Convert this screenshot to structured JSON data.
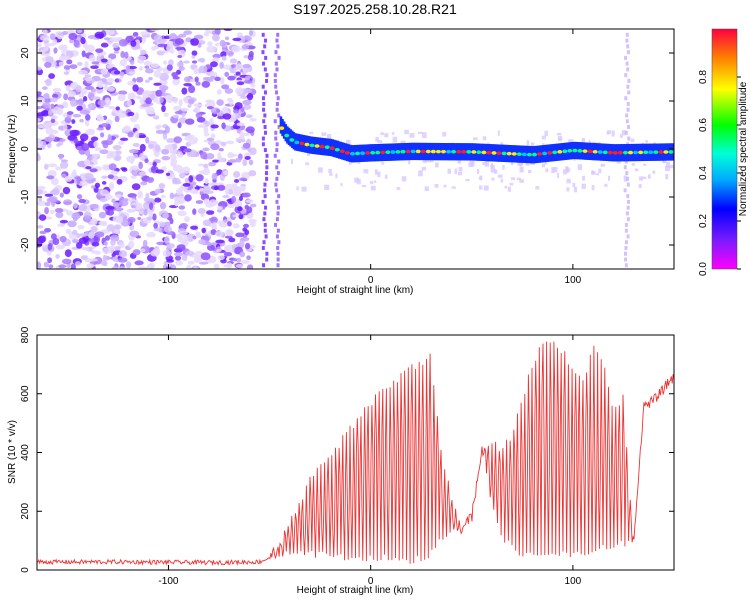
{
  "title": "S197.2025.258.10.28.R21",
  "chart_data": [
    {
      "type": "heatmap",
      "xlabel": "Height of straight line (km)",
      "ylabel": "Frequency (Hz)",
      "xlim": [
        -165,
        150
      ],
      "ylim": [
        -25,
        25
      ],
      "xticks": [
        -100,
        0,
        100
      ],
      "yticks": [
        -20,
        -10,
        0,
        10,
        20
      ],
      "xtick_labels": [
        "-100",
        "0",
        "100"
      ],
      "ytick_labels": [
        "-20",
        "-10",
        "0",
        "10",
        "20"
      ],
      "colorbar": {
        "label": "Normalized spectral amplitude",
        "range": [
          0,
          1
        ],
        "ticks": [
          0.0,
          0.2,
          0.4,
          0.6,
          0.8
        ],
        "tick_labels": [
          "0.0",
          "0.2",
          "0.4",
          "0.6",
          "0.8"
        ],
        "colormap": "hsv-like (magenta-blue-cyan-green-yellow-red)"
      },
      "signal_track": {
        "description": "Strong carrier ridge near 0 Hz from about -45 km to 150 km",
        "points": [
          [
            -45,
            5
          ],
          [
            -42,
            3
          ],
          [
            -38,
            1.5
          ],
          [
            -30,
            0.8
          ],
          [
            -20,
            0.3
          ],
          [
            -10,
            -1
          ],
          [
            0,
            -0.8
          ],
          [
            20,
            -0.5
          ],
          [
            50,
            -0.6
          ],
          [
            80,
            -1.2
          ],
          [
            100,
            -0.3
          ],
          [
            120,
            -0.8
          ],
          [
            150,
            -0.6
          ]
        ]
      }
    },
    {
      "type": "line",
      "xlabel": "Height of straight line (km)",
      "ylabel": "SNR (10 * v/v)",
      "xlim": [
        -165,
        150
      ],
      "ylim": [
        0,
        800
      ],
      "xticks": [
        -100,
        0,
        100
      ],
      "yticks": [
        0,
        200,
        400,
        600,
        800
      ],
      "xtick_labels": [
        "-100",
        "0",
        "100"
      ],
      "ytick_labels": [
        "0",
        "200",
        "400",
        "600",
        "800"
      ],
      "series": [
        {
          "color": "#ee3333",
          "x": [
            -165,
            -120,
            -80,
            -55,
            -50,
            -45,
            -40,
            -35,
            -30,
            -25,
            -20,
            -15,
            -10,
            -5,
            0,
            5,
            10,
            15,
            20,
            25,
            30,
            35,
            40,
            45,
            50,
            55,
            60,
            65,
            70,
            75,
            80,
            85,
            90,
            95,
            100,
            105,
            110,
            115,
            120,
            125,
            130,
            135,
            140,
            145,
            150
          ],
          "y": [
            20,
            20,
            18,
            20,
            40,
            100,
            180,
            250,
            320,
            360,
            400,
            450,
            500,
            540,
            580,
            620,
            640,
            680,
            700,
            720,
            740,
            400,
            260,
            150,
            220,
            420,
            440,
            430,
            480,
            600,
            720,
            780,
            790,
            760,
            700,
            650,
            780,
            720,
            560,
            600,
            80,
            560,
            580,
            620,
            670
          ],
          "minima": [
            20,
            20,
            18,
            20,
            30,
            40,
            40,
            40,
            40,
            40,
            30,
            30,
            30,
            30,
            30,
            30,
            30,
            20,
            20,
            30,
            40,
            100,
            120,
            120,
            150,
            400,
            200,
            100,
            60,
            40,
            40,
            40,
            40,
            40,
            40,
            40,
            50,
            60,
            60,
            80,
            80,
            540,
            560,
            600,
            640
          ]
        }
      ]
    }
  ]
}
